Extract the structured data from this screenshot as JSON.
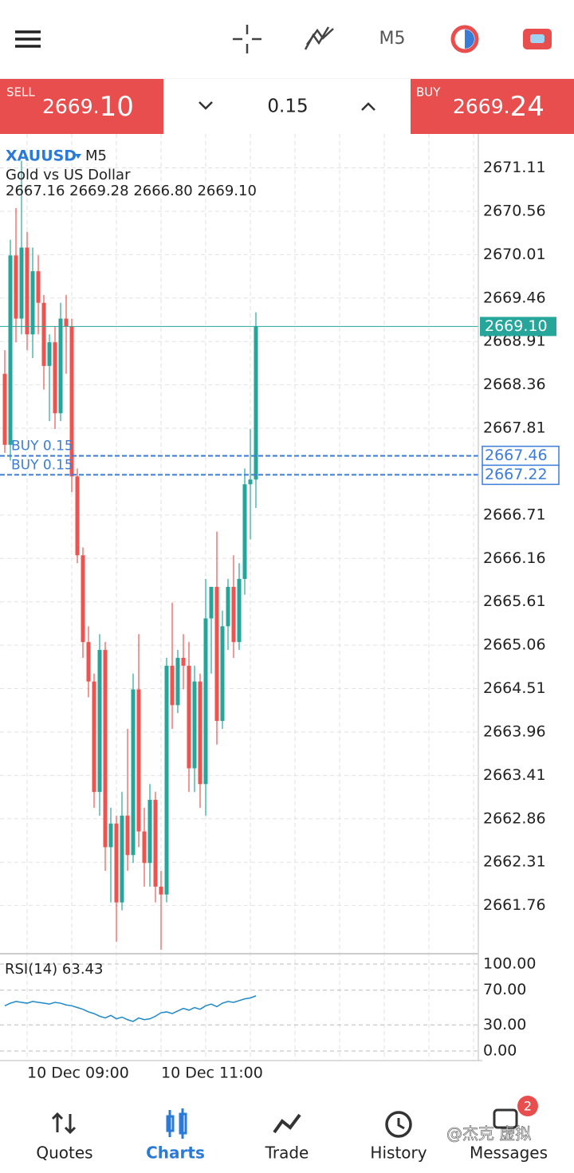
{
  "top_bar": {
    "timeframe": "M5"
  },
  "trade_panel": {
    "sell_label": "SELL",
    "sell_price_main": "2669.",
    "sell_price_big": "10",
    "volume": "0.15",
    "buy_label": "BUY",
    "buy_price_main": "2669.",
    "buy_price_big": "24"
  },
  "chart_data": {
    "type": "candlestick",
    "symbol": "XAUUSD",
    "timeframe": "M5",
    "description": "Gold vs US Dollar",
    "ohlc_header": "2667.16 2669.28 2666.80 2669.10",
    "up_color": "#26a69a",
    "down_color": "#ef5350",
    "open": [
      2668.5,
      2667.6,
      2670.0,
      2669.2,
      2670.1,
      2669.0,
      2669.8,
      2669.4,
      2668.6,
      2668.9,
      2668.0,
      2669.2,
      2669.1,
      2667.2,
      2666.2,
      2665.1,
      2664.6,
      2663.2,
      2665.0,
      2662.5,
      2662.8,
      2661.8,
      2662.9,
      2662.4,
      2664.5,
      2662.7,
      2662.3,
      2663.1,
      2662.0,
      2661.9,
      2664.8,
      2664.3,
      2664.9,
      2664.8,
      2663.5,
      2664.6,
      2663.3,
      2665.4,
      2665.8,
      2664.1,
      2665.3,
      2665.8,
      2665.1,
      2665.9,
      2667.1,
      2667.16
    ],
    "high": [
      2668.8,
      2670.2,
      2670.6,
      2671.2,
      2670.3,
      2670.1,
      2670.0,
      2669.5,
      2669.0,
      2669.1,
      2669.4,
      2669.5,
      2669.2,
      2667.3,
      2666.3,
      2665.3,
      2664.7,
      2665.2,
      2665.1,
      2663.0,
      2662.9,
      2663.2,
      2664.0,
      2664.7,
      2665.2,
      2663.0,
      2663.3,
      2663.2,
      2662.2,
      2664.9,
      2665.6,
      2665.0,
      2665.2,
      2665.1,
      2664.8,
      2664.7,
      2665.9,
      2665.8,
      2666.5,
      2665.5,
      2665.9,
      2666.2,
      2666.1,
      2667.3,
      2667.8,
      2669.28
    ],
    "low": [
      2667.5,
      2667.4,
      2668.9,
      2669.0,
      2668.8,
      2668.7,
      2669.0,
      2668.3,
      2667.9,
      2667.8,
      2667.9,
      2668.5,
      2667.0,
      2666.1,
      2664.9,
      2664.4,
      2663.0,
      2662.9,
      2662.2,
      2661.8,
      2661.3,
      2661.7,
      2662.2,
      2662.3,
      2662.5,
      2662.0,
      2662.0,
      2661.8,
      2661.2,
      2661.8,
      2664.0,
      2664.2,
      2664.5,
      2663.2,
      2663.2,
      2663.0,
      2662.9,
      2664.7,
      2663.8,
      2664.0,
      2665.0,
      2664.9,
      2665.0,
      2665.7,
      2666.4,
      2666.8
    ],
    "close": [
      2667.6,
      2670.0,
      2669.2,
      2670.1,
      2669.0,
      2669.8,
      2669.4,
      2668.6,
      2668.9,
      2668.0,
      2669.2,
      2669.1,
      2667.2,
      2666.2,
      2665.1,
      2664.6,
      2663.2,
      2665.0,
      2662.5,
      2662.8,
      2661.8,
      2662.9,
      2662.4,
      2664.5,
      2662.7,
      2662.3,
      2663.1,
      2662.0,
      2661.9,
      2664.8,
      2664.3,
      2664.9,
      2664.8,
      2663.5,
      2664.6,
      2663.3,
      2665.4,
      2665.8,
      2664.1,
      2665.3,
      2665.8,
      2665.1,
      2665.9,
      2667.1,
      2667.16,
      2669.1
    ],
    "ylim": [
      2661.16,
      2671.54
    ],
    "yticks": [
      2671.11,
      2670.56,
      2670.01,
      2669.46,
      2668.91,
      2668.36,
      2667.81,
      2666.71,
      2666.16,
      2665.61,
      2665.06,
      2664.51,
      2663.96,
      2663.41,
      2662.86,
      2662.31,
      2661.76
    ],
    "current_price": {
      "value": 2669.1,
      "label": "2669.10"
    },
    "orders": [
      {
        "label": "BUY 0.15",
        "price": {
          "value": 2667.46,
          "label": "2667.46"
        }
      },
      {
        "label": "BUY 0.15",
        "price": {
          "value": 2667.22,
          "label": "2667.22"
        }
      }
    ],
    "x_labels": [
      "10 Dec 09:00",
      "10 Dec 11:00"
    ],
    "indicator": {
      "label": "RSI(14) 63.43",
      "color": "#1e88c8",
      "values": [
        52,
        55,
        57,
        56,
        55,
        57,
        56,
        55,
        54,
        56,
        55,
        53,
        52,
        50,
        48,
        45,
        43,
        40,
        38,
        41,
        37,
        39,
        36,
        34,
        38,
        36,
        37,
        40,
        44,
        45,
        43,
        46,
        49,
        47,
        50,
        48,
        52,
        54,
        51,
        55,
        57,
        56,
        58,
        60,
        61,
        63.43
      ],
      "ylim": [
        0,
        100
      ],
      "yticks": [
        {
          "value": 100,
          "label": "100.00"
        },
        {
          "value": 70,
          "label": "70.00"
        },
        {
          "value": 30,
          "label": "30.00"
        },
        {
          "value": 0,
          "label": "0.00"
        }
      ]
    }
  },
  "nav": {
    "items": [
      "Quotes",
      "Charts",
      "Trade",
      "History",
      "Messages"
    ],
    "badge": "2",
    "watermark": "@杰克 虚拟"
  }
}
